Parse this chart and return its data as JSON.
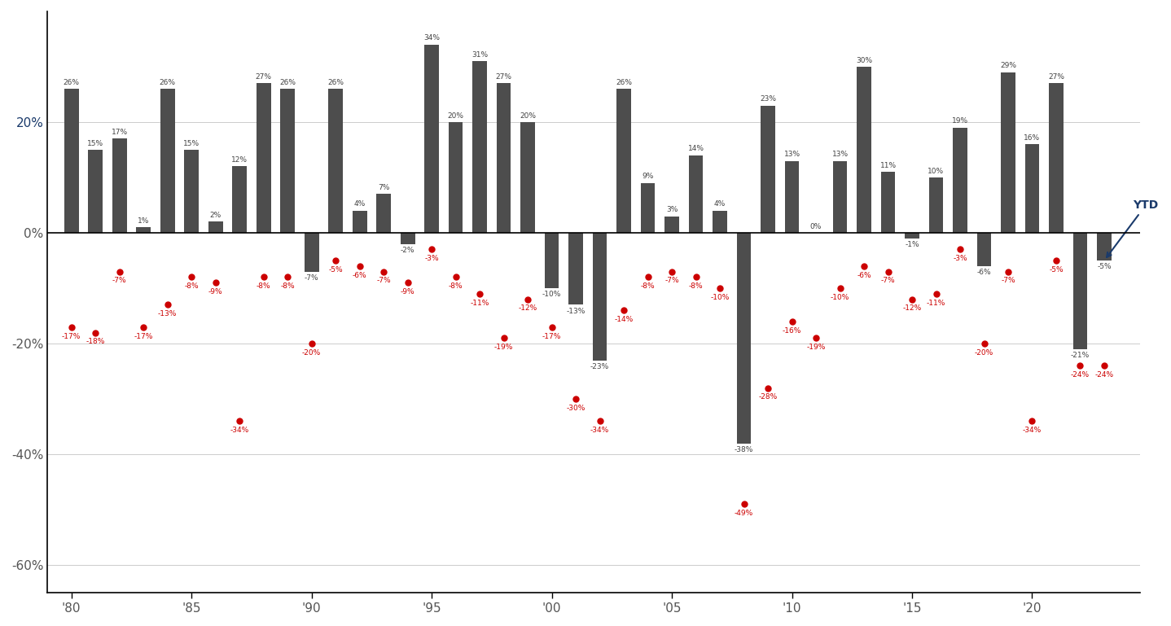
{
  "years": [
    1980,
    1981,
    1982,
    1983,
    1984,
    1985,
    1986,
    1987,
    1988,
    1989,
    1990,
    1991,
    1992,
    1993,
    1994,
    1995,
    1996,
    1997,
    1998,
    1999,
    2000,
    2001,
    2002,
    2003,
    2004,
    2005,
    2006,
    2007,
    2008,
    2009,
    2010,
    2011,
    2012,
    2013,
    2014,
    2015,
    2016,
    2017,
    2018,
    2019,
    2020,
    2021,
    2022,
    2023
  ],
  "bar_vals": [
    26,
    15,
    17,
    1,
    26,
    15,
    2,
    12,
    27,
    26,
    -7,
    26,
    4,
    7,
    -2,
    34,
    20,
    31,
    27,
    20,
    -10,
    -13,
    -23,
    26,
    9,
    3,
    14,
    4,
    -38,
    23,
    13,
    0,
    13,
    30,
    11,
    -1,
    10,
    19,
    -6,
    29,
    16,
    27,
    -21,
    -5
  ],
  "dot_vals": [
    -17,
    -18,
    -7,
    -17,
    -13,
    -8,
    -9,
    -34,
    -8,
    -8,
    -20,
    -5,
    -6,
    -7,
    -9,
    -3,
    -8,
    -11,
    -19,
    -12,
    -17,
    -30,
    -34,
    -14,
    -8,
    -7,
    -8,
    -10,
    -49,
    -28,
    -16,
    -19,
    -10,
    -6,
    -7,
    -12,
    -11,
    -3,
    -20,
    -7,
    -34,
    -5,
    -24,
    -24
  ],
  "bar_labels": [
    "26%",
    "15%",
    "17%",
    "1%",
    "26%",
    "15%",
    "2%",
    "12%",
    "27%",
    "26%",
    "-7%",
    "26%",
    "4%",
    "7%",
    "-2%",
    "34%",
    "20%",
    "31%",
    "27%",
    "20%",
    "-10%",
    "-13%",
    "-23%",
    "26%",
    "9%",
    "3%",
    "14%",
    "4%",
    "-38%",
    "23%",
    "13%",
    "0%",
    "13%",
    "30%",
    "11%",
    "-1%",
    "10%",
    "19%",
    "-6%",
    "29%",
    "16%",
    "27%",
    "-21%",
    "-5%"
  ],
  "dot_labels": [
    "-17%",
    "-18%",
    "-7%",
    "-17%",
    "-13%",
    "-8%",
    "-9%",
    "-34%",
    "-8%",
    "-8%",
    "-20%",
    "-5%",
    "-6%",
    "-7%",
    "-9%",
    "-3%",
    "-8%",
    "-11%",
    "-19%",
    "-12%",
    "-17%",
    "-30%",
    "-34%",
    "-14%",
    "-8%",
    "-7%",
    "-8%",
    "-10%",
    "-49%",
    "-28%",
    "-16%",
    "-19%",
    "-10%",
    "-6%",
    "-7%",
    "-12%",
    "-11%",
    "-3%",
    "-20%",
    "-7%",
    "-34%",
    "-5%",
    "-24%",
    "-24%"
  ],
  "xtick_years": [
    1980,
    1985,
    1990,
    1995,
    2000,
    2005,
    2010,
    2015,
    2020
  ],
  "xtick_labels": [
    "'80",
    "'85",
    "'90",
    "'95",
    "'00",
    "'05",
    "'10",
    "'15",
    "'20"
  ],
  "yticks": [
    20,
    0,
    -20,
    -40,
    -60
  ],
  "ytick_labels": [
    "20%",
    "0%",
    "-20%",
    "-40%",
    "-60%"
  ],
  "ylim": [
    -65,
    40
  ],
  "bar_color": "#4d4d4d",
  "dot_color": "#cc0000",
  "grid_color": "#cccccc",
  "label_color": "#444444",
  "ytd_color": "#1a3a6b",
  "y20_label_color": "#1a3a6b",
  "background_color": "#ffffff",
  "ytd_bar_index": 43,
  "last_bar_ytd_val": -5
}
